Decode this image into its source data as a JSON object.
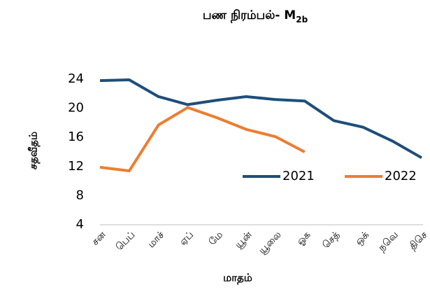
{
  "chart_data": {
    "type": "line",
    "title": "பண நிரம்பல்- M",
    "title_subscript": "2b",
    "y_label": "சதவீதம்",
    "x_label": "மாதம்",
    "categories": [
      "சன",
      "பெப்",
      "மாச்",
      "ஏப்",
      "மே",
      "யூன்",
      "யூலை",
      "ஓக",
      "செத்",
      "ஒக்",
      "நவெ",
      "திசெ"
    ],
    "series": [
      {
        "name": "2021",
        "color": "#1f4e79",
        "values": [
          23.8,
          23.9,
          21.6,
          20.5,
          21.1,
          21.6,
          21.2,
          21.0,
          18.3,
          17.4,
          15.5,
          13.2
        ]
      },
      {
        "name": "2022",
        "color": "#ed7d31",
        "values": [
          11.9,
          11.4,
          17.7,
          20.1,
          18.7,
          17.1,
          16.1,
          14.0,
          null,
          null,
          null,
          null
        ]
      }
    ],
    "ylim": [
      4,
      24
    ],
    "yticks": [
      4,
      8,
      12,
      16,
      20,
      24
    ],
    "grid": false,
    "legend": "right"
  }
}
